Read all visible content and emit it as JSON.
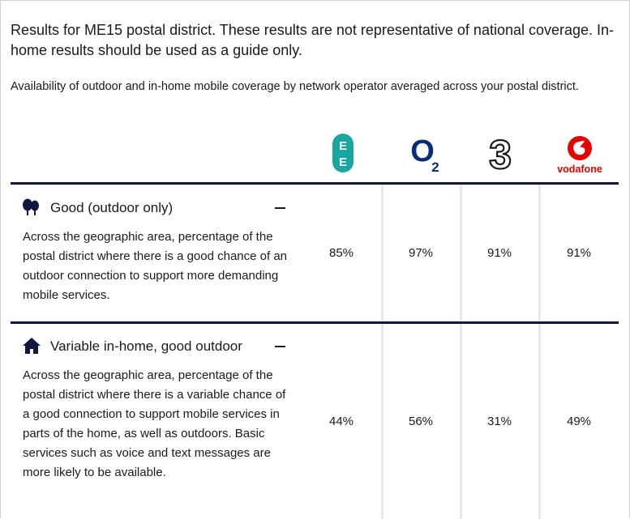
{
  "intro": {
    "headline": "Results for ME15 postal district. These results are not representative of national coverage. In-home results should be used as a guide only.",
    "subline": "Availability of outdoor and in-home mobile coverage by network operator averaged across your postal district."
  },
  "operators": [
    {
      "name": "EE",
      "icon": "ee-logo-icon",
      "color": "#1aa6a0"
    },
    {
      "name": "O2",
      "icon": "o2-logo-icon",
      "color": "#0b2c7a"
    },
    {
      "name": "3",
      "icon": "three-logo-icon",
      "color": "#1a1a1a"
    },
    {
      "name": "vodafone",
      "icon": "vodafone-logo-icon",
      "color": "#e60000"
    }
  ],
  "logo_text": {
    "ee_top": "E",
    "ee_bottom": "E",
    "o2_main": "O",
    "o2_sub": "2",
    "three": "3",
    "vodafone": "vodafone"
  },
  "sections": [
    {
      "title": "Good (outdoor only)",
      "icon": "trees-icon",
      "description": "Across the geographic area, percentage of the postal district where there is a good chance of an outdoor connection to support more demanding mobile services.",
      "values": [
        "85%",
        "97%",
        "91%",
        "91%"
      ]
    },
    {
      "title": "Variable in-home, good outdoor",
      "icon": "house-icon",
      "description": "Across the geographic area, percentage of the postal district where there is a variable chance of a good connection to support mobile services in parts of the home, as well as outdoors. Basic services such as voice and text messages are more likely to be available.",
      "values": [
        "44%",
        "56%",
        "31%",
        "49%"
      ]
    }
  ],
  "colors": {
    "rule": "#13163e",
    "text": "#1a1a1a"
  }
}
